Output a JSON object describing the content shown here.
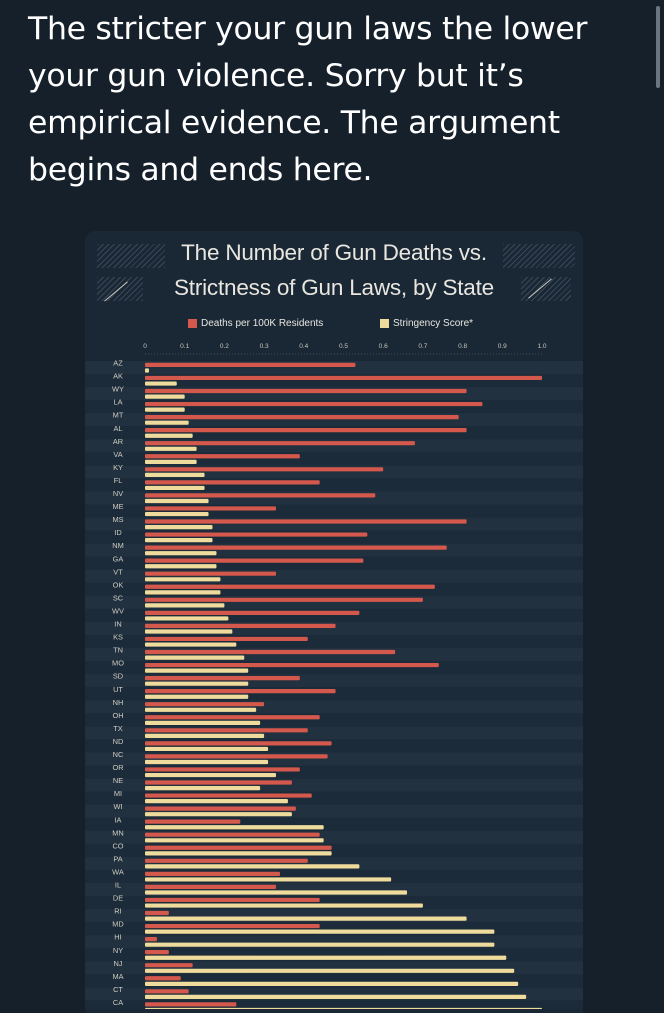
{
  "tweet": {
    "lines": [
      "The stricter your gun laws the lower",
      "your gun violence.  Sorry but it’s",
      "empirical evidence. The argument",
      "begins and ends here."
    ]
  },
  "colors": {
    "background": "#15202b",
    "deaths": "#d4584c",
    "stringency": "#efdb9c"
  },
  "chart_data": {
    "type": "bar",
    "orientation": "horizontal",
    "title": "The Number of Gun Deaths vs.",
    "subtitle": "Strictness of Gun Laws, by State",
    "x_ticks": [
      "0",
      "0.1",
      "0.2",
      "0.3",
      "0.4",
      "0.5",
      "0.6",
      "0.7",
      "0.8",
      "0.9",
      "1.0"
    ],
    "xlim": [
      0,
      1.0
    ],
    "legend": [
      {
        "name": "Deaths per 100K Residents"
      },
      {
        "name": "Stringency Score*"
      }
    ],
    "categories": [
      "AZ",
      "AK",
      "WY",
      "LA",
      "MT",
      "AL",
      "AR",
      "VA",
      "KY",
      "FL",
      "NV",
      "ME",
      "MS",
      "ID",
      "NM",
      "GA",
      "VT",
      "OK",
      "SC",
      "WV",
      "IN",
      "KS",
      "TN",
      "MO",
      "SD",
      "UT",
      "NH",
      "OH",
      "TX",
      "ND",
      "NC",
      "OR",
      "NE",
      "MI",
      "WI",
      "IA",
      "MN",
      "CO",
      "PA",
      "WA",
      "IL",
      "DE",
      "RI",
      "MD",
      "HI",
      "NY",
      "NJ",
      "MA",
      "CT",
      "CA"
    ],
    "series": [
      {
        "name": "Deaths per 100K Residents",
        "values": [
          0.53,
          1.0,
          0.81,
          0.85,
          0.79,
          0.81,
          0.68,
          0.39,
          0.6,
          0.44,
          0.58,
          0.33,
          0.81,
          0.56,
          0.76,
          0.55,
          0.33,
          0.73,
          0.7,
          0.54,
          0.48,
          0.41,
          0.63,
          0.74,
          0.39,
          0.48,
          0.3,
          0.44,
          0.41,
          0.47,
          0.46,
          0.39,
          0.37,
          0.42,
          0.38,
          0.24,
          0.44,
          0.47,
          0.41,
          0.34,
          0.33,
          0.44,
          0.06,
          0.44,
          0.03,
          0.06,
          0.12,
          0.09,
          0.11,
          0.23
        ]
      },
      {
        "name": "Stringency Score*",
        "values": [
          0.01,
          0.08,
          0.1,
          0.1,
          0.11,
          0.12,
          0.13,
          0.13,
          0.15,
          0.15,
          0.16,
          0.16,
          0.17,
          0.17,
          0.18,
          0.18,
          0.19,
          0.19,
          0.2,
          0.21,
          0.22,
          0.23,
          0.25,
          0.26,
          0.26,
          0.26,
          0.28,
          0.29,
          0.3,
          0.31,
          0.31,
          0.33,
          0.29,
          0.36,
          0.37,
          0.45,
          0.45,
          0.47,
          0.54,
          0.62,
          0.66,
          0.7,
          0.81,
          0.88,
          0.88,
          0.91,
          0.93,
          0.94,
          0.96,
          1.0
        ]
      }
    ]
  }
}
